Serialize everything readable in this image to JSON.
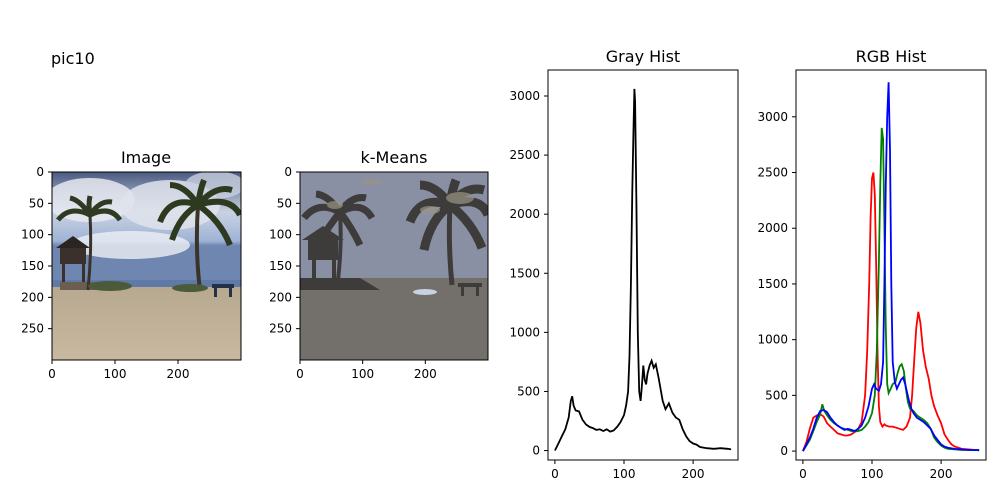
{
  "figure_title": "pic10",
  "colors": {
    "gray_line": "#000000",
    "red": "#ff0000",
    "green": "#008000",
    "blue": "#0000ff",
    "axis": "#000000"
  },
  "panels": {
    "image": {
      "title": "Image",
      "x_ticks": [
        "0",
        "100",
        "200"
      ],
      "y_ticks": [
        "0",
        "50",
        "100",
        "150",
        "200",
        "250"
      ],
      "xlim": [
        0,
        300
      ],
      "ylim": [
        0,
        300
      ],
      "x_tick_values": [
        0,
        100,
        200
      ],
      "y_tick_values": [
        0,
        50,
        100,
        150,
        200,
        250
      ],
      "content": "beach scene with palm trees and lifeguard tower"
    },
    "kmeans": {
      "title": "k-Means",
      "x_ticks": [
        "0",
        "100",
        "200"
      ],
      "y_ticks": [
        "0",
        "50",
        "100",
        "150",
        "200",
        "250"
      ],
      "xlim": [
        0,
        300
      ],
      "ylim": [
        0,
        300
      ],
      "x_tick_values": [
        0,
        100,
        200
      ],
      "y_tick_values": [
        0,
        50,
        100,
        150,
        200,
        250
      ],
      "content": "k-means segmented version of the beach scene"
    }
  },
  "chart_data": [
    {
      "type": "line",
      "title": "Gray Hist",
      "xlim": [
        -10,
        265
      ],
      "ylim": [
        -80,
        3220
      ],
      "x_ticks": [
        0,
        100,
        200
      ],
      "y_ticks": [
        0,
        500,
        1000,
        1500,
        2000,
        2500,
        3000
      ],
      "grid": false,
      "series": [
        {
          "color": "#000000",
          "points": [
            [
              0,
              0
            ],
            [
              5,
              60
            ],
            [
              10,
              120
            ],
            [
              15,
              180
            ],
            [
              20,
              280
            ],
            [
              23,
              420
            ],
            [
              25,
              460
            ],
            [
              27,
              380
            ],
            [
              30,
              340
            ],
            [
              35,
              330
            ],
            [
              40,
              260
            ],
            [
              45,
              220
            ],
            [
              50,
              200
            ],
            [
              55,
              190
            ],
            [
              60,
              175
            ],
            [
              65,
              180
            ],
            [
              70,
              165
            ],
            [
              75,
              180
            ],
            [
              80,
              160
            ],
            [
              85,
              170
            ],
            [
              90,
              200
            ],
            [
              95,
              240
            ],
            [
              100,
              300
            ],
            [
              103,
              380
            ],
            [
              106,
              500
            ],
            [
              108,
              800
            ],
            [
              110,
              1400
            ],
            [
              112,
              2200
            ],
            [
              114,
              2800
            ],
            [
              115,
              3060
            ],
            [
              116,
              2950
            ],
            [
              118,
              2100
            ],
            [
              120,
              1000
            ],
            [
              122,
              500
            ],
            [
              124,
              420
            ],
            [
              126,
              560
            ],
            [
              128,
              720
            ],
            [
              130,
              600
            ],
            [
              132,
              560
            ],
            [
              134,
              650
            ],
            [
              137,
              720
            ],
            [
              140,
              760
            ],
            [
              143,
              700
            ],
            [
              146,
              730
            ],
            [
              150,
              620
            ],
            [
              153,
              520
            ],
            [
              156,
              420
            ],
            [
              160,
              350
            ],
            [
              165,
              400
            ],
            [
              170,
              320
            ],
            [
              175,
              280
            ],
            [
              180,
              260
            ],
            [
              185,
              180
            ],
            [
              190,
              120
            ],
            [
              195,
              80
            ],
            [
              200,
              60
            ],
            [
              205,
              50
            ],
            [
              210,
              30
            ],
            [
              220,
              20
            ],
            [
              230,
              15
            ],
            [
              240,
              20
            ],
            [
              250,
              15
            ],
            [
              255,
              10
            ]
          ]
        }
      ]
    },
    {
      "type": "line",
      "title": "RGB Hist",
      "xlim": [
        -10,
        265
      ],
      "ylim": [
        -80,
        3420
      ],
      "x_ticks": [
        0,
        100,
        200
      ],
      "y_ticks": [
        0,
        500,
        1000,
        1500,
        2000,
        2500,
        3000
      ],
      "grid": false,
      "series": [
        {
          "color": "#ff0000",
          "points": [
            [
              0,
              0
            ],
            [
              5,
              80
            ],
            [
              10,
              200
            ],
            [
              15,
              300
            ],
            [
              20,
              320
            ],
            [
              25,
              330
            ],
            [
              30,
              310
            ],
            [
              35,
              250
            ],
            [
              40,
              220
            ],
            [
              45,
              190
            ],
            [
              50,
              160
            ],
            [
              55,
              150
            ],
            [
              60,
              140
            ],
            [
              65,
              140
            ],
            [
              70,
              150
            ],
            [
              75,
              170
            ],
            [
              80,
              200
            ],
            [
              85,
              260
            ],
            [
              90,
              500
            ],
            [
              93,
              900
            ],
            [
              96,
              1500
            ],
            [
              98,
              2100
            ],
            [
              100,
              2450
            ],
            [
              102,
              2500
            ],
            [
              104,
              2300
            ],
            [
              106,
              1700
            ],
            [
              108,
              900
            ],
            [
              110,
              400
            ],
            [
              112,
              260
            ],
            [
              115,
              220
            ],
            [
              118,
              240
            ],
            [
              120,
              230
            ],
            [
              125,
              220
            ],
            [
              130,
              220
            ],
            [
              135,
              210
            ],
            [
              140,
              200
            ],
            [
              145,
              190
            ],
            [
              150,
              220
            ],
            [
              155,
              300
            ],
            [
              158,
              500
            ],
            [
              161,
              800
            ],
            [
              164,
              1100
            ],
            [
              167,
              1250
            ],
            [
              170,
              1150
            ],
            [
              174,
              900
            ],
            [
              178,
              750
            ],
            [
              182,
              650
            ],
            [
              186,
              500
            ],
            [
              190,
              400
            ],
            [
              195,
              320
            ],
            [
              200,
              250
            ],
            [
              205,
              150
            ],
            [
              210,
              100
            ],
            [
              215,
              60
            ],
            [
              220,
              40
            ],
            [
              230,
              20
            ],
            [
              240,
              15
            ],
            [
              250,
              10
            ],
            [
              255,
              10
            ]
          ]
        },
        {
          "color": "#008000",
          "points": [
            [
              0,
              0
            ],
            [
              5,
              50
            ],
            [
              10,
              100
            ],
            [
              15,
              180
            ],
            [
              20,
              260
            ],
            [
              25,
              330
            ],
            [
              28,
              420
            ],
            [
              31,
              360
            ],
            [
              35,
              320
            ],
            [
              40,
              280
            ],
            [
              45,
              250
            ],
            [
              50,
              230
            ],
            [
              55,
              210
            ],
            [
              60,
              200
            ],
            [
              65,
              190
            ],
            [
              70,
              180
            ],
            [
              75,
              175
            ],
            [
              80,
              180
            ],
            [
              85,
              190
            ],
            [
              90,
              220
            ],
            [
              95,
              260
            ],
            [
              100,
              340
            ],
            [
              104,
              500
            ],
            [
              107,
              900
            ],
            [
              110,
              1700
            ],
            [
              112,
              2400
            ],
            [
              114,
              2900
            ],
            [
              116,
              2800
            ],
            [
              118,
              2000
            ],
            [
              120,
              1100
            ],
            [
              122,
              600
            ],
            [
              124,
              520
            ],
            [
              127,
              560
            ],
            [
              130,
              600
            ],
            [
              134,
              620
            ],
            [
              137,
              700
            ],
            [
              140,
              760
            ],
            [
              143,
              780
            ],
            [
              146,
              720
            ],
            [
              149,
              560
            ],
            [
              152,
              440
            ],
            [
              155,
              380
            ],
            [
              160,
              360
            ],
            [
              165,
              320
            ],
            [
              170,
              300
            ],
            [
              175,
              280
            ],
            [
              180,
              250
            ],
            [
              185,
              200
            ],
            [
              190,
              120
            ],
            [
              195,
              80
            ],
            [
              200,
              50
            ],
            [
              205,
              30
            ],
            [
              210,
              20
            ],
            [
              220,
              15
            ],
            [
              230,
              10
            ],
            [
              240,
              10
            ],
            [
              250,
              10
            ],
            [
              255,
              5
            ]
          ]
        },
        {
          "color": "#0000ff",
          "points": [
            [
              0,
              0
            ],
            [
              5,
              60
            ],
            [
              10,
              120
            ],
            [
              15,
              200
            ],
            [
              20,
              300
            ],
            [
              25,
              360
            ],
            [
              30,
              370
            ],
            [
              35,
              350
            ],
            [
              40,
              300
            ],
            [
              45,
              260
            ],
            [
              50,
              230
            ],
            [
              55,
              210
            ],
            [
              60,
              190
            ],
            [
              65,
              200
            ],
            [
              70,
              190
            ],
            [
              75,
              180
            ],
            [
              80,
              200
            ],
            [
              85,
              230
            ],
            [
              90,
              300
            ],
            [
              95,
              400
            ],
            [
              100,
              560
            ],
            [
              103,
              600
            ],
            [
              106,
              560
            ],
            [
              110,
              540
            ],
            [
              113,
              600
            ],
            [
              116,
              800
            ],
            [
              118,
              1500
            ],
            [
              120,
              2400
            ],
            [
              122,
              3000
            ],
            [
              124,
              3310
            ],
            [
              126,
              2700
            ],
            [
              128,
              1500
            ],
            [
              130,
              800
            ],
            [
              133,
              620
            ],
            [
              136,
              560
            ],
            [
              139,
              600
            ],
            [
              142,
              640
            ],
            [
              145,
              660
            ],
            [
              148,
              600
            ],
            [
              151,
              520
            ],
            [
              154,
              440
            ],
            [
              157,
              380
            ],
            [
              160,
              340
            ],
            [
              165,
              300
            ],
            [
              170,
              280
            ],
            [
              175,
              260
            ],
            [
              180,
              230
            ],
            [
              185,
              200
            ],
            [
              190,
              140
            ],
            [
              195,
              100
            ],
            [
              200,
              60
            ],
            [
              205,
              40
            ],
            [
              210,
              30
            ],
            [
              220,
              20
            ],
            [
              230,
              15
            ],
            [
              240,
              10
            ],
            [
              250,
              10
            ],
            [
              255,
              10
            ]
          ]
        }
      ]
    }
  ]
}
